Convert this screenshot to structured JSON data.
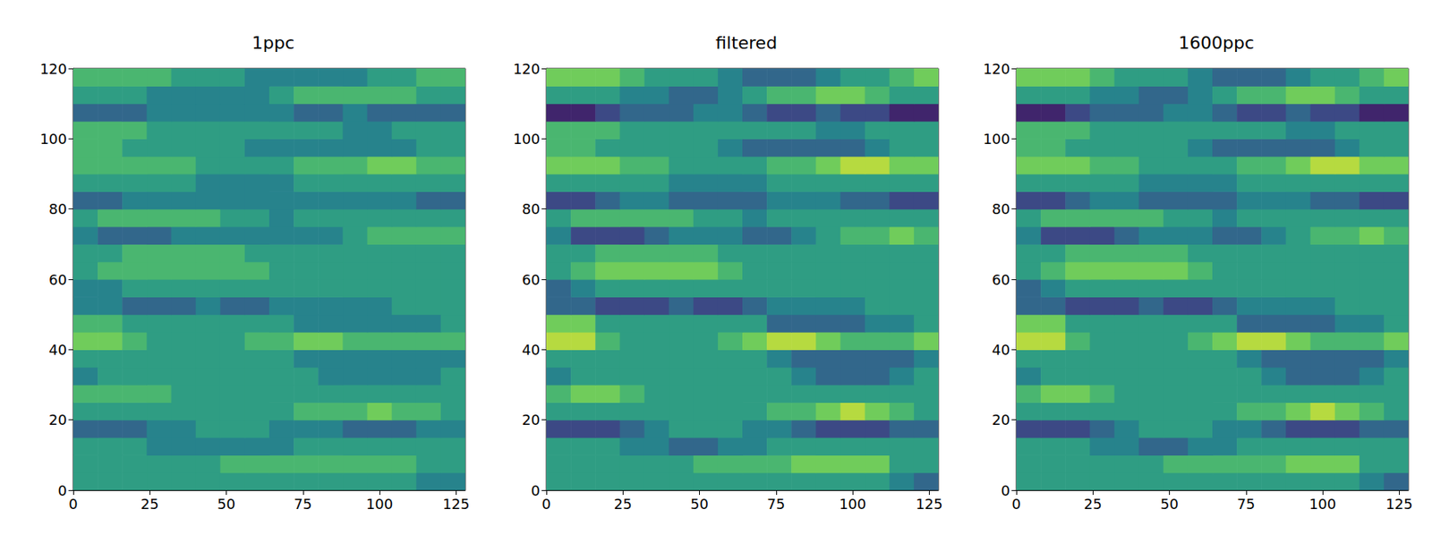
{
  "chart_data": [
    {
      "type": "heatmap",
      "title": "1ppc",
      "xlim": [
        0,
        128
      ],
      "ylim": [
        0,
        120
      ],
      "xticks": [
        0,
        25,
        50,
        75,
        100,
        125
      ],
      "yticks": [
        0,
        20,
        40,
        60,
        80,
        100,
        120
      ],
      "grid": false,
      "clim": [
        0,
        9
      ],
      "x_bins": [
        0,
        8,
        16,
        24,
        32,
        40,
        48,
        56,
        64,
        72,
        80,
        88,
        96,
        104,
        112,
        120,
        128
      ],
      "y_bins": [
        0,
        5,
        10,
        15,
        20,
        25,
        30,
        35,
        40,
        45,
        50,
        55,
        60,
        65,
        70,
        75,
        80,
        85,
        90,
        95,
        100,
        105,
        110,
        115,
        120
      ],
      "cells": [
        [
          5,
          5,
          5,
          5,
          5,
          5,
          5,
          5,
          5,
          5,
          5,
          5,
          5,
          5,
          4,
          4
        ],
        [
          5,
          5,
          5,
          5,
          5,
          5,
          6,
          6,
          6,
          6,
          6,
          6,
          6,
          6,
          5,
          5
        ],
        [
          5,
          5,
          5,
          4,
          4,
          4,
          4,
          4,
          4,
          5,
          5,
          5,
          5,
          5,
          5,
          5
        ],
        [
          3,
          3,
          3,
          4,
          4,
          5,
          5,
          5,
          4,
          4,
          4,
          3,
          3,
          3,
          4,
          4
        ],
        [
          5,
          5,
          5,
          5,
          5,
          5,
          5,
          5,
          5,
          6,
          6,
          6,
          7,
          6,
          6,
          5
        ],
        [
          6,
          6,
          6,
          6,
          5,
          5,
          5,
          5,
          5,
          5,
          5,
          5,
          5,
          5,
          5,
          5
        ],
        [
          4,
          5,
          5,
          5,
          5,
          5,
          5,
          5,
          5,
          5,
          4,
          4,
          4,
          4,
          4,
          5
        ],
        [
          5,
          5,
          5,
          5,
          5,
          5,
          5,
          5,
          5,
          4,
          4,
          4,
          4,
          4,
          4,
          4
        ],
        [
          7,
          7,
          6,
          5,
          5,
          5,
          5,
          6,
          6,
          7,
          7,
          6,
          6,
          6,
          6,
          6
        ],
        [
          6,
          6,
          5,
          5,
          5,
          5,
          5,
          5,
          5,
          4,
          4,
          4,
          4,
          4,
          4,
          5
        ],
        [
          4,
          4,
          3,
          3,
          3,
          4,
          3,
          3,
          4,
          4,
          4,
          4,
          4,
          5,
          5,
          5
        ],
        [
          4,
          4,
          5,
          5,
          5,
          5,
          5,
          5,
          5,
          5,
          5,
          5,
          5,
          5,
          5,
          5
        ],
        [
          5,
          6,
          6,
          6,
          6,
          6,
          6,
          6,
          5,
          5,
          5,
          5,
          5,
          5,
          5,
          5
        ],
        [
          5,
          5,
          6,
          6,
          6,
          6,
          6,
          5,
          5,
          5,
          5,
          5,
          5,
          5,
          5,
          5
        ],
        [
          4,
          3,
          3,
          3,
          4,
          4,
          4,
          4,
          4,
          4,
          4,
          5,
          6,
          6,
          6,
          6
        ],
        [
          5,
          6,
          6,
          6,
          6,
          6,
          5,
          5,
          4,
          5,
          5,
          5,
          5,
          5,
          5,
          5
        ],
        [
          3,
          3,
          4,
          4,
          4,
          4,
          4,
          4,
          4,
          4,
          4,
          4,
          4,
          4,
          3,
          3
        ],
        [
          5,
          5,
          5,
          5,
          5,
          4,
          4,
          4,
          4,
          5,
          5,
          5,
          5,
          5,
          5,
          5
        ],
        [
          6,
          6,
          6,
          6,
          6,
          5,
          5,
          5,
          5,
          6,
          6,
          6,
          7,
          7,
          6,
          6
        ],
        [
          6,
          6,
          5,
          5,
          5,
          5,
          5,
          4,
          4,
          4,
          4,
          4,
          4,
          4,
          5,
          5
        ],
        [
          6,
          6,
          6,
          5,
          5,
          5,
          5,
          5,
          5,
          5,
          5,
          4,
          4,
          5,
          5,
          5
        ],
        [
          3,
          3,
          3,
          4,
          4,
          4,
          4,
          4,
          4,
          3,
          3,
          4,
          3,
          3,
          3,
          3
        ],
        [
          5,
          5,
          5,
          4,
          4,
          4,
          4,
          4,
          5,
          6,
          6,
          6,
          6,
          6,
          5,
          5
        ],
        [
          6,
          6,
          6,
          6,
          5,
          5,
          5,
          4,
          4,
          4,
          4,
          4,
          5,
          5,
          6,
          6
        ]
      ]
    },
    {
      "type": "heatmap",
      "title": "filtered",
      "xlim": [
        0,
        128
      ],
      "ylim": [
        0,
        120
      ],
      "xticks": [
        0,
        25,
        50,
        75,
        100,
        125
      ],
      "yticks": [
        0,
        20,
        40,
        60,
        80,
        100,
        120
      ],
      "grid": false,
      "clim": [
        0,
        9
      ],
      "x_bins": [
        0,
        8,
        16,
        24,
        32,
        40,
        48,
        56,
        64,
        72,
        80,
        88,
        96,
        104,
        112,
        120,
        128
      ],
      "y_bins": [
        0,
        5,
        10,
        15,
        20,
        25,
        30,
        35,
        40,
        45,
        50,
        55,
        60,
        65,
        70,
        75,
        80,
        85,
        90,
        95,
        100,
        105,
        110,
        115,
        120
      ],
      "cells": [
        [
          5,
          5,
          5,
          5,
          5,
          5,
          5,
          5,
          5,
          5,
          5,
          5,
          5,
          5,
          4,
          3
        ],
        [
          5,
          5,
          5,
          5,
          5,
          5,
          6,
          6,
          6,
          6,
          7,
          7,
          7,
          7,
          5,
          5
        ],
        [
          5,
          5,
          5,
          4,
          4,
          3,
          3,
          4,
          4,
          5,
          5,
          5,
          5,
          5,
          5,
          5
        ],
        [
          2,
          2,
          2,
          3,
          4,
          5,
          5,
          5,
          4,
          4,
          3,
          2,
          2,
          2,
          3,
          3
        ],
        [
          5,
          5,
          5,
          5,
          5,
          5,
          5,
          5,
          5,
          6,
          6,
          7,
          8,
          7,
          6,
          5
        ],
        [
          6,
          7,
          7,
          6,
          5,
          5,
          5,
          5,
          5,
          5,
          5,
          5,
          5,
          5,
          5,
          5
        ],
        [
          4,
          5,
          5,
          5,
          5,
          5,
          5,
          5,
          5,
          5,
          4,
          3,
          3,
          3,
          4,
          5
        ],
        [
          5,
          5,
          5,
          5,
          5,
          5,
          5,
          5,
          5,
          4,
          3,
          3,
          3,
          3,
          3,
          4
        ],
        [
          8,
          8,
          6,
          5,
          5,
          5,
          5,
          6,
          7,
          8,
          8,
          7,
          6,
          6,
          6,
          7
        ],
        [
          7,
          7,
          5,
          5,
          5,
          5,
          5,
          5,
          5,
          3,
          3,
          3,
          3,
          4,
          4,
          5
        ],
        [
          3,
          3,
          2,
          2,
          2,
          3,
          2,
          2,
          3,
          4,
          4,
          4,
          4,
          5,
          5,
          5
        ],
        [
          3,
          4,
          5,
          5,
          5,
          5,
          5,
          5,
          5,
          5,
          5,
          5,
          5,
          5,
          5,
          5
        ],
        [
          5,
          6,
          7,
          7,
          7,
          7,
          7,
          6,
          5,
          5,
          5,
          5,
          5,
          5,
          5,
          5
        ],
        [
          5,
          5,
          6,
          6,
          6,
          6,
          6,
          5,
          5,
          5,
          5,
          5,
          5,
          5,
          5,
          5
        ],
        [
          4,
          2,
          2,
          2,
          3,
          4,
          4,
          4,
          3,
          3,
          4,
          5,
          6,
          6,
          7,
          6
        ],
        [
          5,
          6,
          6,
          6,
          6,
          6,
          5,
          5,
          4,
          5,
          5,
          5,
          5,
          5,
          5,
          5
        ],
        [
          2,
          2,
          3,
          4,
          4,
          3,
          3,
          3,
          3,
          4,
          4,
          4,
          3,
          3,
          2,
          2
        ],
        [
          5,
          5,
          5,
          5,
          5,
          4,
          4,
          4,
          4,
          5,
          5,
          5,
          5,
          5,
          5,
          5
        ],
        [
          7,
          7,
          7,
          6,
          6,
          5,
          5,
          5,
          5,
          6,
          6,
          7,
          8,
          8,
          7,
          7
        ],
        [
          6,
          6,
          5,
          5,
          5,
          5,
          5,
          4,
          3,
          3,
          3,
          3,
          3,
          4,
          5,
          5
        ],
        [
          6,
          6,
          6,
          5,
          5,
          5,
          5,
          5,
          5,
          5,
          5,
          4,
          4,
          5,
          5,
          5
        ],
        [
          1,
          1,
          2,
          3,
          3,
          3,
          4,
          4,
          3,
          2,
          2,
          3,
          2,
          2,
          1,
          1
        ],
        [
          5,
          5,
          5,
          4,
          4,
          3,
          3,
          4,
          5,
          6,
          6,
          7,
          7,
          6,
          5,
          5
        ],
        [
          7,
          7,
          7,
          6,
          5,
          5,
          5,
          4,
          3,
          3,
          3,
          4,
          5,
          5,
          6,
          7
        ]
      ]
    },
    {
      "type": "heatmap",
      "title": "1600ppc",
      "xlim": [
        0,
        128
      ],
      "ylim": [
        0,
        120
      ],
      "xticks": [
        0,
        25,
        50,
        75,
        100,
        125
      ],
      "yticks": [
        0,
        20,
        40,
        60,
        80,
        100,
        120
      ],
      "grid": false,
      "clim": [
        0,
        9
      ],
      "x_bins": [
        0,
        8,
        16,
        24,
        32,
        40,
        48,
        56,
        64,
        72,
        80,
        88,
        96,
        104,
        112,
        120,
        128
      ],
      "y_bins": [
        0,
        5,
        10,
        15,
        20,
        25,
        30,
        35,
        40,
        45,
        50,
        55,
        60,
        65,
        70,
        75,
        80,
        85,
        90,
        95,
        100,
        105,
        110,
        115,
        120
      ],
      "cells": [
        [
          5,
          5,
          5,
          5,
          5,
          5,
          5,
          5,
          5,
          5,
          5,
          5,
          5,
          5,
          4,
          3
        ],
        [
          5,
          5,
          5,
          5,
          5,
          5,
          6,
          6,
          6,
          6,
          6,
          7,
          7,
          7,
          5,
          5
        ],
        [
          5,
          5,
          5,
          4,
          4,
          3,
          3,
          4,
          4,
          5,
          5,
          5,
          5,
          5,
          5,
          5
        ],
        [
          2,
          2,
          2,
          3,
          4,
          5,
          5,
          5,
          4,
          4,
          3,
          2,
          2,
          2,
          3,
          3
        ],
        [
          5,
          5,
          5,
          5,
          5,
          5,
          5,
          5,
          5,
          6,
          6,
          7,
          8,
          7,
          6,
          5
        ],
        [
          6,
          7,
          7,
          6,
          5,
          5,
          5,
          5,
          5,
          5,
          5,
          5,
          5,
          5,
          5,
          5
        ],
        [
          4,
          5,
          5,
          5,
          5,
          5,
          5,
          5,
          5,
          5,
          4,
          3,
          3,
          3,
          4,
          5
        ],
        [
          5,
          5,
          5,
          5,
          5,
          5,
          5,
          5,
          5,
          4,
          3,
          3,
          3,
          3,
          3,
          4
        ],
        [
          8,
          8,
          6,
          5,
          5,
          5,
          5,
          6,
          7,
          8,
          8,
          7,
          6,
          6,
          6,
          7
        ],
        [
          7,
          7,
          5,
          5,
          5,
          5,
          5,
          5,
          5,
          3,
          3,
          3,
          3,
          4,
          4,
          5
        ],
        [
          3,
          3,
          2,
          2,
          2,
          3,
          2,
          2,
          3,
          4,
          4,
          4,
          4,
          5,
          5,
          5
        ],
        [
          3,
          4,
          5,
          5,
          5,
          5,
          5,
          5,
          5,
          5,
          5,
          5,
          5,
          5,
          5,
          5
        ],
        [
          5,
          6,
          7,
          7,
          7,
          7,
          7,
          6,
          5,
          5,
          5,
          5,
          5,
          5,
          5,
          5
        ],
        [
          5,
          5,
          6,
          6,
          6,
          6,
          6,
          5,
          5,
          5,
          5,
          5,
          5,
          5,
          5,
          5
        ],
        [
          4,
          2,
          2,
          2,
          3,
          4,
          4,
          4,
          3,
          3,
          4,
          5,
          6,
          6,
          7,
          6
        ],
        [
          5,
          6,
          6,
          6,
          6,
          6,
          5,
          5,
          4,
          5,
          5,
          5,
          5,
          5,
          5,
          5
        ],
        [
          2,
          2,
          3,
          4,
          4,
          3,
          3,
          3,
          3,
          4,
          4,
          4,
          3,
          3,
          2,
          2
        ],
        [
          5,
          5,
          5,
          5,
          5,
          4,
          4,
          4,
          4,
          5,
          5,
          5,
          5,
          5,
          5,
          5
        ],
        [
          7,
          7,
          7,
          6,
          6,
          5,
          5,
          5,
          5,
          6,
          6,
          7,
          8,
          8,
          7,
          7
        ],
        [
          6,
          6,
          5,
          5,
          5,
          5,
          5,
          4,
          3,
          3,
          3,
          3,
          3,
          4,
          5,
          5
        ],
        [
          6,
          6,
          6,
          5,
          5,
          5,
          5,
          5,
          5,
          5,
          5,
          4,
          4,
          5,
          5,
          5
        ],
        [
          1,
          1,
          2,
          3,
          3,
          3,
          4,
          4,
          3,
          2,
          2,
          3,
          2,
          2,
          1,
          1
        ],
        [
          5,
          5,
          5,
          4,
          4,
          3,
          3,
          4,
          5,
          6,
          6,
          7,
          7,
          6,
          5,
          5
        ],
        [
          7,
          7,
          7,
          6,
          5,
          5,
          5,
          4,
          3,
          3,
          3,
          4,
          5,
          5,
          6,
          7
        ]
      ]
    }
  ]
}
